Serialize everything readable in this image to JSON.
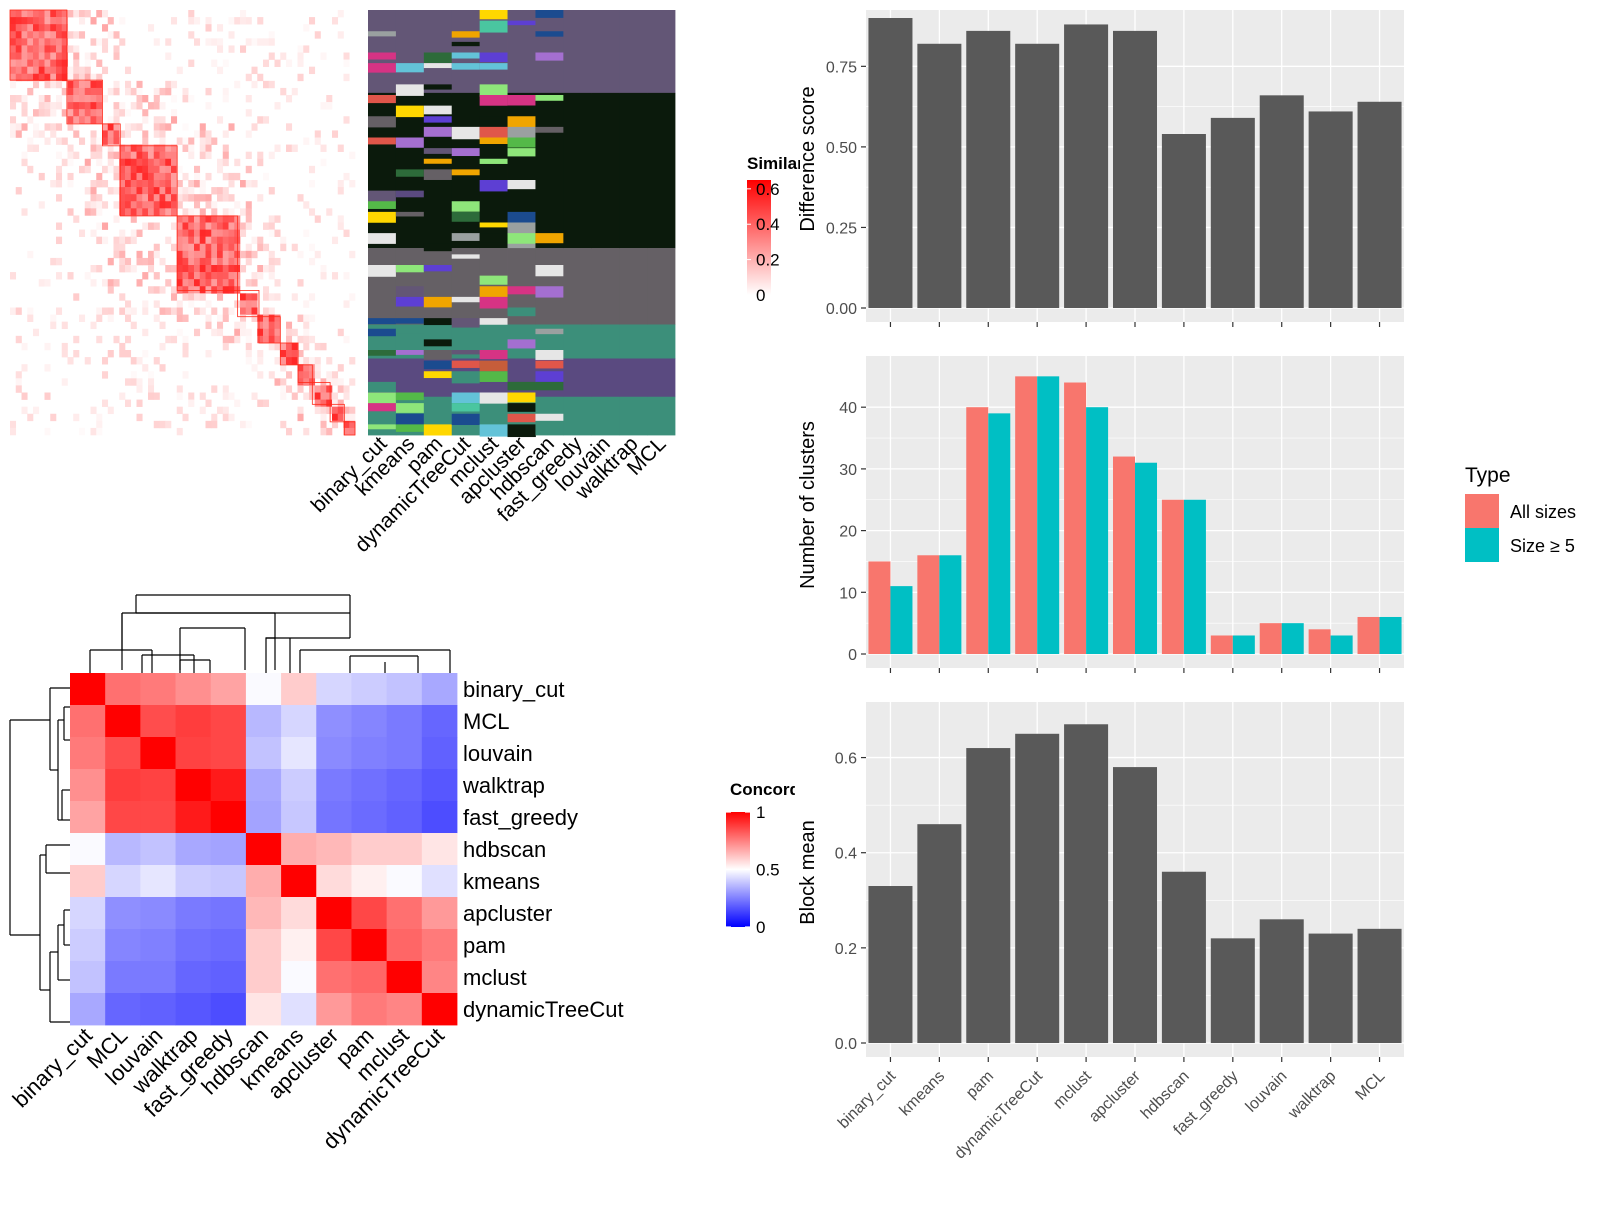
{
  "colors": {
    "sim_high": "#ff0000",
    "sim_low": "#ffffff",
    "conc_high": "#ff0000",
    "conc_mid": "#ffffff",
    "conc_low": "#0000ff",
    "bar_fill": "#595959",
    "panel_bg": "#ebebeb",
    "grid": "#ffffff",
    "all_sizes": "#f8766d",
    "size_ge5": "#00bfc4"
  },
  "similarity_heatmap": {
    "legend_title": "Similarity",
    "legend_ticks": [
      "0.6",
      "0.4",
      "0.2",
      "0"
    ],
    "legend_values": [
      0.6,
      0.4,
      0.2,
      0
    ],
    "n_blocks": 12
  },
  "partition_heatmap": {
    "methods": [
      "binary_cut",
      "kmeans",
      "pam",
      "dynamicTreeCut",
      "mclust",
      "apcluster",
      "hdbscan",
      "fast_greedy",
      "louvain",
      "walktrap",
      "MCL"
    ]
  },
  "concordance_heatmap": {
    "legend_title": "Concordance",
    "legend_ticks": [
      "1",
      "0.5",
      "0"
    ],
    "legend_values": [
      1,
      0.5,
      0
    ],
    "row_labels": [
      "binary_cut",
      "MCL",
      "louvain",
      "walktrap",
      "fast_greedy",
      "hdbscan",
      "kmeans",
      "apcluster",
      "pam",
      "mclust",
      "dynamicTreeCut"
    ],
    "col_labels": [
      "binary_cut",
      "MCL",
      "louvain",
      "walktrap",
      "fast_greedy",
      "hdbscan",
      "kmeans",
      "apcluster",
      "pam",
      "mclust",
      "dynamicTreeCut"
    ],
    "values": [
      [
        1.0,
        0.78,
        0.76,
        0.72,
        0.68,
        0.49,
        0.6,
        0.42,
        0.4,
        0.38,
        0.33
      ],
      [
        0.78,
        1.0,
        0.85,
        0.88,
        0.86,
        0.36,
        0.42,
        0.28,
        0.26,
        0.24,
        0.2
      ],
      [
        0.76,
        0.85,
        1.0,
        0.87,
        0.86,
        0.38,
        0.45,
        0.27,
        0.25,
        0.24,
        0.19
      ],
      [
        0.72,
        0.88,
        0.87,
        1.0,
        0.95,
        0.33,
        0.4,
        0.24,
        0.22,
        0.2,
        0.17
      ],
      [
        0.68,
        0.86,
        0.86,
        0.95,
        1.0,
        0.32,
        0.39,
        0.23,
        0.21,
        0.19,
        0.15
      ],
      [
        0.49,
        0.36,
        0.38,
        0.33,
        0.32,
        1.0,
        0.66,
        0.64,
        0.6,
        0.6,
        0.55
      ],
      [
        0.6,
        0.42,
        0.45,
        0.4,
        0.39,
        0.66,
        1.0,
        0.57,
        0.53,
        0.49,
        0.44
      ],
      [
        0.42,
        0.28,
        0.27,
        0.24,
        0.23,
        0.64,
        0.57,
        1.0,
        0.86,
        0.78,
        0.7
      ],
      [
        0.4,
        0.26,
        0.25,
        0.22,
        0.21,
        0.6,
        0.53,
        0.86,
        1.0,
        0.8,
        0.76
      ],
      [
        0.38,
        0.24,
        0.24,
        0.2,
        0.19,
        0.6,
        0.49,
        0.78,
        0.8,
        1.0,
        0.74
      ],
      [
        0.33,
        0.2,
        0.19,
        0.17,
        0.15,
        0.55,
        0.44,
        0.7,
        0.76,
        0.74,
        1.0
      ]
    ]
  },
  "chart_data": [
    {
      "type": "bar",
      "categories": [
        "binary_cut",
        "kmeans",
        "pam",
        "dynamicTreeCut",
        "mclust",
        "apcluster",
        "hdbscan",
        "fast_greedy",
        "louvain",
        "walktrap",
        "MCL"
      ],
      "values": [
        0.9,
        0.82,
        0.86,
        0.82,
        0.88,
        0.86,
        0.54,
        0.59,
        0.66,
        0.61,
        0.64
      ],
      "ylabel": "Difference score",
      "ylim": [
        0,
        0.9
      ],
      "yticks": [
        0,
        0.25,
        0.5,
        0.75
      ],
      "ytick_labels": [
        "0.00",
        "0.25",
        "0.50",
        "0.75"
      ],
      "grid": true
    },
    {
      "type": "bar",
      "categories": [
        "binary_cut",
        "kmeans",
        "pam",
        "dynamicTreeCut",
        "mclust",
        "apcluster",
        "hdbscan",
        "fast_greedy",
        "louvain",
        "walktrap",
        "MCL"
      ],
      "series": [
        {
          "name": "All sizes",
          "values": [
            15,
            16,
            40,
            45,
            44,
            32,
            25,
            3,
            5,
            4,
            6
          ]
        },
        {
          "name": "Size ≥ 5",
          "values": [
            11,
            16,
            39,
            45,
            40,
            31,
            25,
            3,
            5,
            3,
            6
          ]
        }
      ],
      "ylabel": "Number of clusters",
      "ylim": [
        0,
        47
      ],
      "yticks": [
        0,
        10,
        20,
        30,
        40
      ],
      "ytick_labels": [
        "0",
        "10",
        "20",
        "30",
        "40"
      ],
      "legend_title": "Type",
      "legend_position": "right",
      "grid": true
    },
    {
      "type": "bar",
      "categories": [
        "binary_cut",
        "kmeans",
        "pam",
        "dynamicTreeCut",
        "mclust",
        "apcluster",
        "hdbscan",
        "fast_greedy",
        "louvain",
        "walktrap",
        "MCL"
      ],
      "values": [
        0.33,
        0.46,
        0.62,
        0.65,
        0.67,
        0.58,
        0.36,
        0.22,
        0.26,
        0.23,
        0.24
      ],
      "ylabel": "Block mean",
      "ylim": [
        0,
        0.7
      ],
      "yticks": [
        0,
        0.2,
        0.4,
        0.6
      ],
      "ytick_labels": [
        "0.0",
        "0.2",
        "0.4",
        "0.6"
      ],
      "grid": true
    }
  ]
}
